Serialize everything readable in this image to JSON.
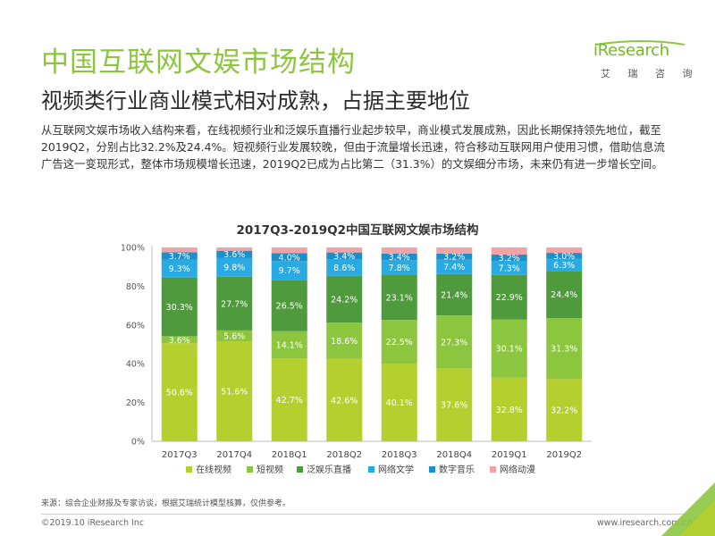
{
  "page": {
    "title": "中国互联网文娱市场结构",
    "subtitle": "视频类行业商业模式相对成熟，占据主要地位",
    "intro": "从互联网文娱市场收入结构来看，在线视频行业和泛娱乐直播行业起步较早，商业模式发展成熟，因此长期保持领先地位，截至2019Q2，分别占比32.2%及24.4%。短视频行业发展较晚，但由于流量增长迅速，符合移动互联网用户使用习惯，借助信息流广告这一变现形式，整体市场规模增长迅速，2019Q2已成为占比第二（31.3%）的文娱细分市场，未来仍有进一步增长空间。",
    "source": "来源：综合企业财报及专家访谈，根据艾瑞统计模型核算，仅供参考。",
    "copyright": "©2019.10 iResearch Inc",
    "website": "www.iresearch.com.cn",
    "page_number": "5"
  },
  "logo": {
    "wordmark": "iResearch",
    "subtext": "艾 瑞 咨 询",
    "color": "#77b82a"
  },
  "chart_data": {
    "type": "bar",
    "stacked": true,
    "title": "2017Q3-2019Q2中国互联网文娱市场结构",
    "categories": [
      "2017Q3",
      "2017Q4",
      "2018Q1",
      "2018Q2",
      "2018Q3",
      "2018Q4",
      "2019Q1",
      "2019Q2"
    ],
    "ylim": [
      0,
      100
    ],
    "yticks": [
      "0%",
      "20%",
      "40%",
      "60%",
      "80%",
      "100%"
    ],
    "grid": false,
    "legend_position": "bottom",
    "series": [
      {
        "name": "在线视频",
        "color": "#b5cf2f",
        "values": [
          50.6,
          51.6,
          42.7,
          42.6,
          40.1,
          37.6,
          32.8,
          32.2
        ],
        "labels": [
          "50.6%",
          "51.6%",
          "42.7%",
          "42.6%",
          "40.1%",
          "37.6%",
          "32.8%",
          "32.2%"
        ]
      },
      {
        "name": "短视频",
        "color": "#8cc63f",
        "values": [
          3.6,
          5.6,
          14.1,
          18.6,
          22.5,
          27.3,
          30.1,
          31.3
        ],
        "labels": [
          "3.6%",
          "5.6%",
          "14.1%",
          "18.6%",
          "22.5%",
          "27.3%",
          "30.1%",
          "31.3%"
        ]
      },
      {
        "name": "泛娱乐直播",
        "color": "#4e9a3c",
        "values": [
          30.3,
          27.7,
          26.5,
          24.2,
          23.1,
          21.4,
          22.9,
          24.4
        ],
        "labels": [
          "30.3%",
          "27.7%",
          "26.5%",
          "24.2%",
          "23.1%",
          "21.4%",
          "22.9%",
          "24.4%"
        ]
      },
      {
        "name": "网络文学",
        "color": "#29aae2",
        "values": [
          9.3,
          9.8,
          9.7,
          8.6,
          7.8,
          7.4,
          7.3,
          6.3
        ],
        "labels": [
          "9.3%",
          "9.8%",
          "9.7%",
          "8.6%",
          "7.8%",
          "7.4%",
          "7.3%",
          "6.3%"
        ]
      },
      {
        "name": "数字音乐",
        "color": "#1a8fc9",
        "values": [
          3.7,
          3.6,
          4.0,
          3.4,
          3.4,
          3.2,
          3.2,
          3.0
        ],
        "labels": [
          "3.7%",
          "3.6%",
          "4.0%",
          "3.4%",
          "3.4%",
          "3.2%",
          "3.2%",
          "3.0%"
        ]
      },
      {
        "name": "网络动漫",
        "color": "#f2a3a6",
        "values": [
          2.5,
          1.7,
          3.0,
          2.6,
          3.1,
          3.1,
          3.7,
          2.8
        ],
        "labels": [
          "",
          "",
          "",
          "",
          "",
          "",
          "",
          ""
        ]
      }
    ]
  }
}
